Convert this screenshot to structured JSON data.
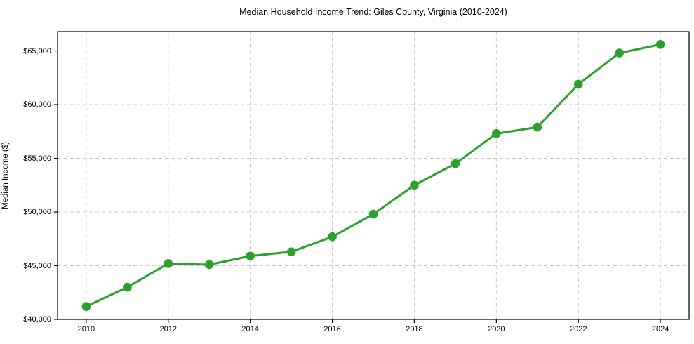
{
  "chart_data": {
    "type": "line",
    "title": "Median Household Income Trend: Giles County, Virginia (2010-2024)",
    "xlabel": "",
    "ylabel": "Median Income ($)",
    "series": [
      {
        "name": "Median Household Income",
        "x": [
          2010,
          2011,
          2012,
          2013,
          2014,
          2015,
          2016,
          2017,
          2018,
          2019,
          2020,
          2021,
          2022,
          2023,
          2024
        ],
        "values": [
          41200,
          43000,
          45200,
          45100,
          45900,
          46300,
          47700,
          49800,
          52500,
          54500,
          57300,
          57900,
          61900,
          64800,
          65600
        ]
      }
    ],
    "xlim": [
      2009.3,
      2024.7
    ],
    "ylim": [
      40000,
      66800
    ],
    "x_ticks": [
      2010,
      2012,
      2014,
      2016,
      2018,
      2020,
      2022,
      2024
    ],
    "x_tick_labels": [
      "2010",
      "2012",
      "2014",
      "2016",
      "2018",
      "2020",
      "2022",
      "2024"
    ],
    "y_ticks": [
      40000,
      45000,
      50000,
      55000,
      60000,
      65000
    ],
    "y_tick_labels": [
      "$40,000",
      "$45,000",
      "$50,000",
      "$55,000",
      "$60,000",
      "$65,000"
    ],
    "legend": "none",
    "grid": "dashed",
    "colors": {
      "line": "#2ca02c",
      "marker": "#2ca02c",
      "grid": "#c9c9c9",
      "spine": "#000000",
      "background": "#ffffff",
      "text": "#000000"
    },
    "style": {
      "line_width": 3,
      "marker_radius": 6.3,
      "marker_shape": "circle"
    }
  }
}
